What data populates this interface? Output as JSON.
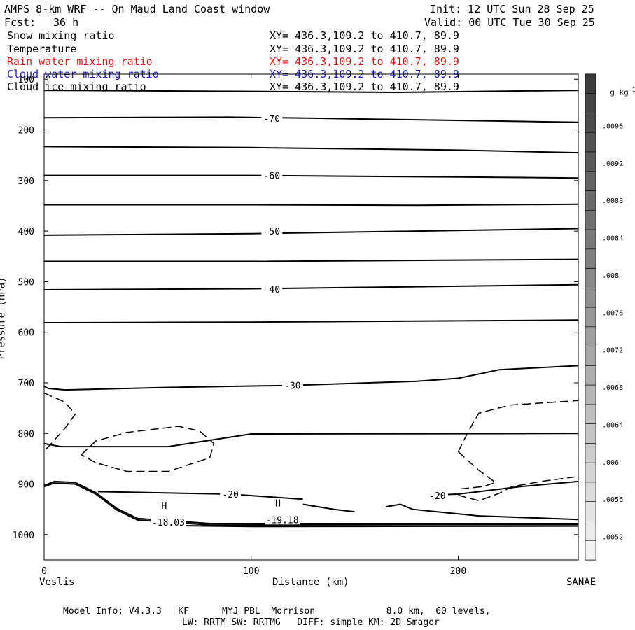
{
  "header": {
    "title": "AMPS 8-km WRF -- Qn Maud Land Coast window",
    "init": "Init: 12 UTC Sun 28 Sep 25",
    "fcst_label": "Fcst:",
    "fcst_value": "36 h",
    "valid": "Valid: 00 UTC Tue 30 Sep 25"
  },
  "variables": [
    {
      "name": "Snow mixing ratio",
      "xy": "XY= 436.3,109.2 to 410.7, 89.9",
      "color": "#000000"
    },
    {
      "name": "Temperature",
      "xy": "XY= 436.3,109.2 to 410.7, 89.9",
      "color": "#000000"
    },
    {
      "name": "Rain water mixing ratio",
      "xy": "XY= 436.3,109.2 to 410.7, 89.9",
      "color": "#ee1111"
    },
    {
      "name": "Cloud water mixing ratio",
      "xy": "XY= 436.3,109.2 to 410.7, 89.9",
      "color": "#1a1acc"
    },
    {
      "name": "Cloud ice mixing ratio",
      "xy": "XY= 436.3,109.2 to 410.7, 89.9",
      "color": "#000000"
    }
  ],
  "footer": {
    "line1": "Model Info: V4.3.3   KF      MYJ PBL  Morrison             8.0 km,  60 levels,",
    "line2": "LW: RRTM SW: RRTMG   DIFF: simple KM: 2D Smagor"
  },
  "chart_data": {
    "type": "contour",
    "xlabel": "Distance (km)",
    "ylabel": "Pressure (hPa)",
    "xlim": [
      0,
      258
    ],
    "ylim": [
      1050,
      90
    ],
    "x_ticks": [
      0,
      100,
      200
    ],
    "y_ticks": [
      100,
      200,
      300,
      400,
      500,
      600,
      700,
      800,
      900,
      1000
    ],
    "left_endpoint": "Veslis",
    "right_endpoint": "SANAE",
    "colorbar": {
      "unit": "g kg",
      "unit_exp": "-1",
      "tick_labels": [
        ".0052",
        ".0056",
        ".006",
        ".0064",
        ".0068",
        ".0072",
        ".0076",
        ".008",
        ".0084",
        ".0088",
        ".0092",
        ".0096"
      ],
      "n_steps": 25,
      "color_dark": "#3c3c3c",
      "color_light": "#f2f2f2"
    },
    "temperature_contours": [
      {
        "points": [
          [
            0,
            122
          ],
          [
            100,
            124
          ],
          [
            170,
            126
          ],
          [
            258,
            122
          ]
        ]
      },
      {
        "label": "-70",
        "label_at": [
          110,
          177
        ],
        "points": [
          [
            0,
            176
          ],
          [
            90,
            175
          ],
          [
            130,
            177
          ],
          [
            258,
            185
          ]
        ]
      },
      {
        "points": [
          [
            0,
            233
          ],
          [
            100,
            235
          ],
          [
            200,
            240
          ],
          [
            258,
            245
          ]
        ]
      },
      {
        "label": "-60",
        "label_at": [
          110,
          290
        ],
        "points": [
          [
            0,
            290
          ],
          [
            100,
            290
          ],
          [
            200,
            293
          ],
          [
            258,
            295
          ]
        ]
      },
      {
        "points": [
          [
            0,
            348
          ],
          [
            100,
            348
          ],
          [
            180,
            349
          ],
          [
            258,
            347
          ]
        ]
      },
      {
        "label": "-50",
        "label_at": [
          110,
          400
        ],
        "points": [
          [
            0,
            408
          ],
          [
            100,
            405
          ],
          [
            180,
            400
          ],
          [
            258,
            395
          ]
        ]
      },
      {
        "points": [
          [
            0,
            460
          ],
          [
            100,
            460
          ],
          [
            258,
            456
          ]
        ]
      },
      {
        "label": "-40",
        "label_at": [
          110,
          515
        ],
        "points": [
          [
            0,
            516
          ],
          [
            100,
            514
          ],
          [
            180,
            510
          ],
          [
            258,
            506
          ]
        ]
      },
      {
        "points": [
          [
            0,
            581
          ],
          [
            100,
            580
          ],
          [
            258,
            576
          ]
        ]
      },
      {
        "label": "-30",
        "label_at": [
          120,
          705
        ],
        "points": [
          [
            0,
            707
          ],
          [
            2,
            711
          ],
          [
            10,
            714
          ],
          [
            60,
            709
          ],
          [
            120,
            705
          ],
          [
            180,
            697
          ],
          [
            200,
            691
          ],
          [
            220,
            674
          ],
          [
            258,
            666
          ]
        ]
      },
      {
        "points": [
          [
            0,
            820
          ],
          [
            8,
            826
          ],
          [
            60,
            826
          ],
          [
            100,
            801
          ],
          [
            258,
            800
          ]
        ]
      },
      {
        "label": "-20",
        "label_at": [
          90,
          920
        ],
        "points": [
          [
            26,
            915
          ],
          [
            90,
            920
          ],
          [
            125,
            930
          ]
        ]
      },
      {
        "label": "-20",
        "label_at": [
          190,
          923
        ],
        "points": [
          [
            185,
            922
          ],
          [
            200,
            920
          ],
          [
            230,
            905
          ],
          [
            258,
            895
          ]
        ]
      },
      {
        "points": [
          [
            125,
            940
          ],
          [
            140,
            950
          ],
          [
            150,
            955
          ]
        ]
      },
      {
        "points": [
          [
            165,
            945
          ],
          [
            172,
            940
          ],
          [
            178,
            950
          ],
          [
            210,
            963
          ],
          [
            258,
            970
          ]
        ]
      },
      {
        "points": [
          [
            0,
            903
          ],
          [
            5,
            895
          ],
          [
            15,
            897
          ],
          [
            25,
            917
          ],
          [
            35,
            948
          ],
          [
            45,
            968
          ],
          [
            80,
            978
          ],
          [
            258,
            978
          ]
        ]
      },
      {
        "points": [
          [
            0,
            905
          ],
          [
            5,
            898
          ],
          [
            15,
            900
          ],
          [
            25,
            920
          ],
          [
            35,
            951
          ],
          [
            45,
            971
          ],
          [
            80,
            981
          ],
          [
            258,
            980
          ]
        ]
      },
      {
        "points": [
          [
            60,
            982
          ],
          [
            100,
            984
          ],
          [
            258,
            983
          ]
        ]
      }
    ],
    "dashed_contours": [
      {
        "points": [
          [
            0,
            720
          ],
          [
            10,
            738
          ],
          [
            15,
            762
          ],
          [
            10,
            790
          ],
          [
            3,
            822
          ],
          [
            0,
            835
          ]
        ]
      },
      {
        "points": [
          [
            18,
            842
          ],
          [
            25,
            815
          ],
          [
            40,
            798
          ],
          [
            65,
            786
          ],
          [
            75,
            795
          ],
          [
            82,
            820
          ],
          [
            80,
            848
          ],
          [
            60,
            875
          ],
          [
            40,
            875
          ],
          [
            25,
            858
          ],
          [
            18,
            842
          ]
        ]
      },
      {
        "points": [
          [
            200,
            836
          ],
          [
            205,
            795
          ],
          [
            210,
            760
          ],
          [
            225,
            744
          ],
          [
            258,
            735
          ]
        ]
      },
      {
        "points": [
          [
            200,
            836
          ],
          [
            210,
            873
          ],
          [
            218,
            897
          ],
          [
            212,
            905
          ],
          [
            200,
            910
          ]
        ]
      },
      {
        "points": [
          [
            200,
            922
          ],
          [
            210,
            933
          ],
          [
            220,
            918
          ],
          [
            226,
            905
          ],
          [
            240,
            895
          ],
          [
            258,
            885
          ]
        ]
      }
    ],
    "highs": [
      {
        "symbol": "H",
        "value": "-18.03",
        "x": 60,
        "p": 960
      },
      {
        "symbol": "H",
        "value": "-19.18",
        "x": 115,
        "p": 955
      }
    ]
  }
}
